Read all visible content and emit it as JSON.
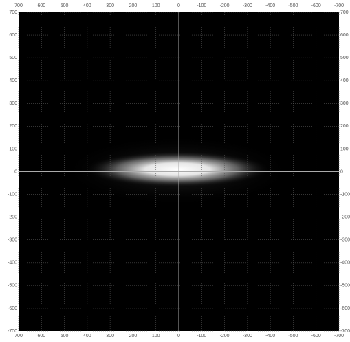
{
  "chart_data": {
    "type": "intensity-map",
    "xlim": [
      700,
      -700
    ],
    "xticks": [
      700,
      600,
      500,
      400,
      300,
      200,
      100,
      0,
      -100,
      -200,
      -300,
      -400,
      -500,
      -600,
      -700
    ],
    "ylim": [
      -700,
      700
    ],
    "yticks": [
      700,
      600,
      500,
      400,
      300,
      200,
      100,
      0,
      -100,
      -200,
      -300,
      -400,
      -500,
      -600,
      -700
    ],
    "grid": true
  }
}
